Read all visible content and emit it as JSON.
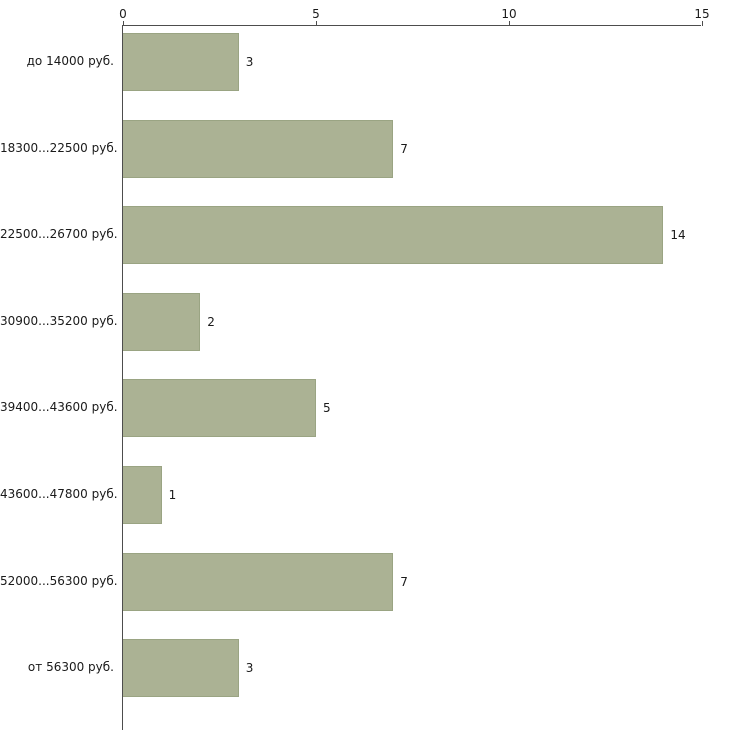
{
  "chart_data": {
    "type": "bar",
    "orientation": "horizontal",
    "title": "",
    "xlabel": "",
    "ylabel": "",
    "categories": [
      "до 14000 руб.",
      "18300...22500 руб.",
      "22500...26700 руб.",
      "30900...35200 руб.",
      "39400...43600 руб.",
      "43600...47800 руб.",
      "52000...56300 руб.",
      "от 56300 руб."
    ],
    "values": [
      3,
      7,
      14,
      2,
      5,
      1,
      7,
      3
    ],
    "value_labels": [
      "3",
      "7",
      "14",
      "2",
      "5",
      "1",
      "7",
      "3"
    ],
    "xlim": [
      0,
      15
    ],
    "x_ticks": [
      0,
      5,
      10,
      15
    ],
    "grid": false,
    "legend": "none",
    "colors": {
      "bar_fill": "#abb294",
      "bar_border": "#9aa483",
      "axis": "#4d4d4d",
      "text": "#1a1a1a",
      "background": "#ffffff"
    }
  }
}
